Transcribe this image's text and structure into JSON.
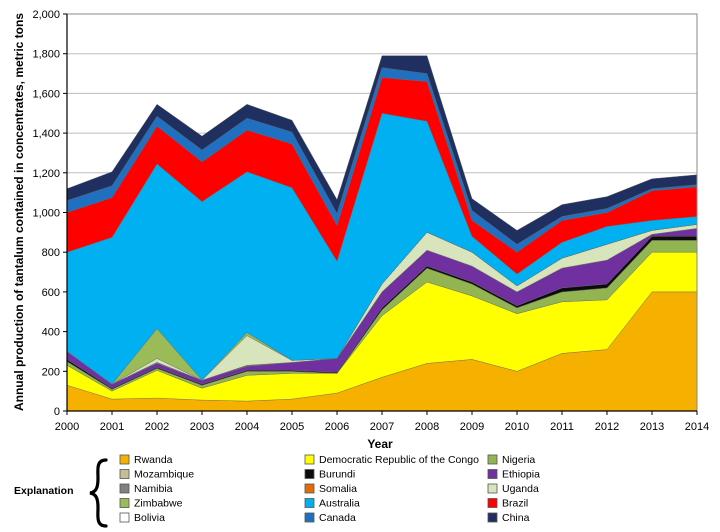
{
  "chart_data": {
    "type": "area",
    "stacked": true,
    "title": "",
    "xlabel": "Year",
    "ylabel": "Annual production of tantalum contained in concentrates, metric tons",
    "x": [
      "2000",
      "2001",
      "2002",
      "2003",
      "2004",
      "2005",
      "2006",
      "2007",
      "2008",
      "2009",
      "2010",
      "2011",
      "2012",
      "2013",
      "2014"
    ],
    "ylim": [
      0,
      2000
    ],
    "yticks": [
      0,
      200,
      400,
      600,
      800,
      1000,
      1200,
      1400,
      1600,
      1800,
      2000
    ],
    "ytick_labels": [
      "0",
      "200",
      "400",
      "600",
      "800",
      "1,000",
      "1,200",
      "1,400",
      "1,600",
      "1,800",
      "2,000"
    ],
    "grid": true,
    "legend_title": "Explanation",
    "legend_position": "bottom",
    "legend_order": [
      "Rwanda",
      "Democratic Republic of the Congo",
      "Nigeria",
      "Mozambique",
      "Burundi",
      "Ethiopia",
      "Namibia",
      "Somalia",
      "Uganda",
      "Zimbabwe",
      "Australia",
      "Brazil",
      "Bolivia",
      "Canada",
      "China"
    ],
    "series": [
      {
        "name": "Rwanda",
        "color": "#f5b000",
        "values": [
          130,
          60,
          65,
          55,
          50,
          60,
          90,
          170,
          240,
          260,
          200,
          290,
          310,
          600,
          600
        ]
      },
      {
        "name": "Democratic Republic of the Congo",
        "color": "#ffff00",
        "values": [
          100,
          40,
          140,
          60,
          130,
          130,
          100,
          310,
          410,
          320,
          290,
          260,
          250,
          200,
          200
        ]
      },
      {
        "name": "Nigeria",
        "color": "#92b552",
        "values": [
          20,
          10,
          10,
          15,
          20,
          10,
          0,
          30,
          70,
          60,
          30,
          50,
          60,
          60,
          60
        ]
      },
      {
        "name": "Mozambique",
        "color": "#c4bd97",
        "values": [
          0,
          0,
          0,
          0,
          0,
          0,
          0,
          0,
          0,
          0,
          0,
          0,
          0,
          0,
          0
        ]
      },
      {
        "name": "Burundi",
        "color": "#0c0c0c",
        "values": [
          10,
          5,
          5,
          5,
          5,
          5,
          5,
          10,
          10,
          10,
          10,
          20,
          20,
          20,
          20
        ]
      },
      {
        "name": "Ethiopia",
        "color": "#7030a0",
        "values": [
          40,
          20,
          20,
          20,
          20,
          40,
          70,
          80,
          80,
          80,
          70,
          100,
          120,
          10,
          40
        ]
      },
      {
        "name": "Namibia",
        "color": "#808080",
        "values": [
          0,
          0,
          5,
          0,
          5,
          0,
          0,
          0,
          0,
          0,
          0,
          0,
          0,
          0,
          0
        ]
      },
      {
        "name": "Somalia",
        "color": "#e36c09",
        "values": [
          0,
          0,
          0,
          0,
          0,
          0,
          0,
          0,
          0,
          0,
          0,
          0,
          0,
          0,
          0
        ]
      },
      {
        "name": "Uganda",
        "color": "#d7e4bc",
        "values": [
          0,
          0,
          20,
          0,
          150,
          10,
          0,
          40,
          90,
          70,
          30,
          50,
          80,
          20,
          20
        ]
      },
      {
        "name": "Zimbabwe",
        "color": "#9bbb59",
        "values": [
          0,
          0,
          150,
          0,
          15,
          0,
          0,
          0,
          0,
          0,
          0,
          0,
          0,
          0,
          0
        ]
      },
      {
        "name": "Australia",
        "color": "#00b0f0",
        "values": [
          500,
          740,
          830,
          900,
          810,
          870,
          490,
          860,
          560,
          80,
          60,
          80,
          90,
          50,
          40
        ]
      },
      {
        "name": "Brazil",
        "color": "#ff0000",
        "values": [
          200,
          200,
          190,
          200,
          210,
          220,
          180,
          180,
          200,
          80,
          110,
          110,
          70,
          150,
          150
        ]
      },
      {
        "name": "Bolivia",
        "color": "#ffffff",
        "values": [
          0,
          0,
          0,
          0,
          0,
          0,
          0,
          0,
          0,
          0,
          0,
          0,
          0,
          0,
          0
        ]
      },
      {
        "name": "Canada",
        "color": "#1f70c1",
        "values": [
          60,
          60,
          50,
          60,
          60,
          60,
          60,
          50,
          40,
          50,
          40,
          20,
          20,
          10,
          10
        ]
      },
      {
        "name": "China",
        "color": "#1f2f60",
        "values": [
          60,
          70,
          60,
          70,
          70,
          60,
          70,
          60,
          90,
          60,
          70,
          60,
          60,
          50,
          50
        ]
      }
    ]
  }
}
